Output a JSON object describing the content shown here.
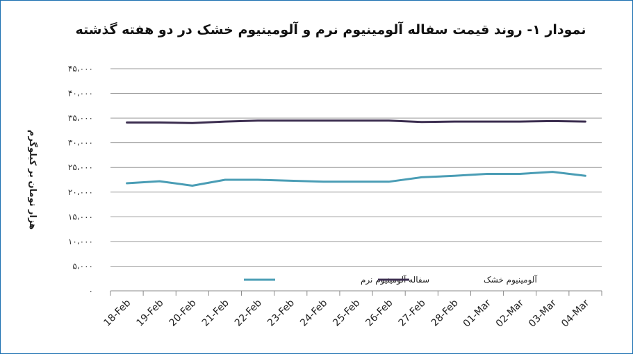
{
  "chart_data": {
    "type": "line",
    "title": "نمودار ۱- روند قیمت سفاله آلومینیوم نرم و آلومینیوم خشک  در دو هفته گذشته",
    "xlabel": "",
    "ylabel": "هزار تومان بر کیلوگرم",
    "ylim": [
      0,
      45000
    ],
    "ytick_labels": [
      "۰",
      "۵،۰۰۰",
      "۱۰،۰۰۰",
      "۱۵،۰۰۰",
      "۲۰،۰۰۰",
      "۲۵،۰۰۰",
      "۳۰،۰۰۰",
      "۳۵،۰۰۰",
      "۴۰،۰۰۰",
      "۴۵،۰۰۰"
    ],
    "grid": true,
    "legend_position": "bottom",
    "categories": [
      "18-Feb",
      "19-Feb",
      "20-Feb",
      "21-Feb",
      "22-Feb",
      "23-Feb",
      "24-Feb",
      "25-Feb",
      "26-Feb",
      "27-Feb",
      "28-Feb",
      "01-Mar",
      "02-Mar",
      "03-Mar",
      "04-Mar"
    ],
    "series": [
      {
        "name": "سفاله آلومینیوم نرم",
        "color": "#4a9db5",
        "values": [
          21800,
          22200,
          21300,
          22500,
          22500,
          22300,
          22100,
          22100,
          22100,
          23000,
          23300,
          23700,
          23700,
          24100,
          23300
        ]
      },
      {
        "name": "آلومینیوم خشک",
        "color": "#3b2d4f",
        "values": [
          34100,
          34100,
          34000,
          34300,
          34500,
          34500,
          34500,
          34500,
          34500,
          34200,
          34300,
          34300,
          34300,
          34400,
          34300
        ]
      }
    ]
  }
}
